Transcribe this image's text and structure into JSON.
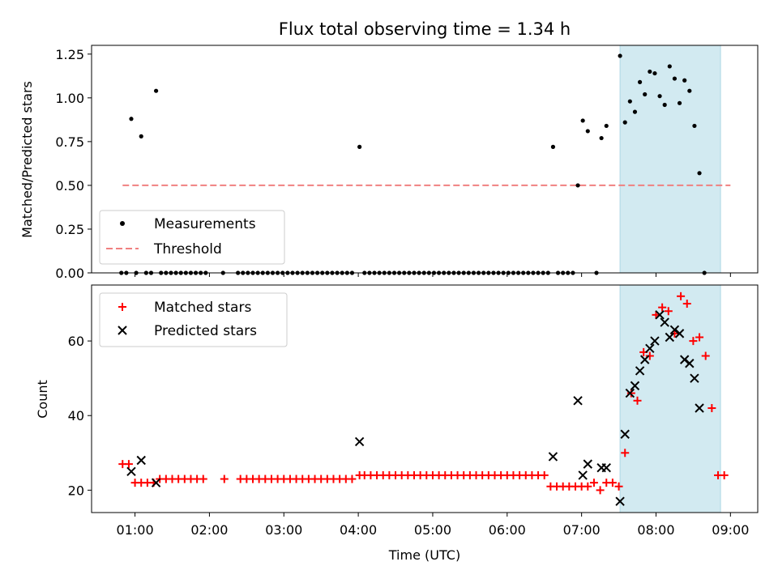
{
  "title": "Flux total observing time = 1.34 h",
  "xlabel": "Time (UTC)",
  "xticks": [
    "01:00",
    "02:00",
    "03:00",
    "04:00",
    "05:00",
    "06:00",
    "07:00",
    "08:00",
    "09:00"
  ],
  "colors": {
    "measurements": "#000000",
    "threshold": "#f08080",
    "matched": "#ff0000",
    "predicted": "#000000",
    "span": "#add8e6"
  },
  "chart_data": [
    {
      "type": "scatter",
      "ylabel": "Matched/Predicted stars",
      "xlim": [
        "00:25",
        "09:22"
      ],
      "ylim": [
        0,
        1.3
      ],
      "yticks": [
        "0.00",
        "0.25",
        "0.50",
        "0.75",
        "1.00",
        "1.25"
      ],
      "legend": {
        "placement": "lower-left",
        "entries": [
          "Measurements",
          "Threshold"
        ]
      },
      "shaded_span": [
        "07:31",
        "08:52"
      ],
      "threshold": {
        "label": "Threshold",
        "value": 0.5,
        "x": [
          "00:50",
          "09:00"
        ]
      },
      "series": [
        {
          "name": "Measurements",
          "marker": "dot",
          "points": [
            [
              "00:49",
              0
            ],
            [
              "00:53",
              0
            ],
            [
              "00:57",
              0.88
            ],
            [
              "01:01",
              0
            ],
            [
              "01:05",
              0.78
            ],
            [
              "01:09",
              0
            ],
            [
              "01:13",
              0
            ],
            [
              "01:17",
              1.04
            ],
            [
              "01:21",
              0
            ],
            [
              "01:25",
              0
            ],
            [
              "01:29",
              0
            ],
            [
              "01:33",
              0
            ],
            [
              "01:37",
              0
            ],
            [
              "01:41",
              0
            ],
            [
              "01:45",
              0
            ],
            [
              "01:49",
              0
            ],
            [
              "01:53",
              0
            ],
            [
              "01:57",
              0
            ],
            [
              "02:11",
              0
            ],
            [
              "02:23",
              0
            ],
            [
              "02:27",
              0
            ],
            [
              "02:31",
              0
            ],
            [
              "02:35",
              0
            ],
            [
              "02:39",
              0
            ],
            [
              "02:43",
              0
            ],
            [
              "02:47",
              0
            ],
            [
              "02:51",
              0
            ],
            [
              "02:55",
              0
            ],
            [
              "02:59",
              0
            ],
            [
              "03:03",
              0
            ],
            [
              "03:07",
              0
            ],
            [
              "03:11",
              0
            ],
            [
              "03:15",
              0
            ],
            [
              "03:19",
              0
            ],
            [
              "03:23",
              0
            ],
            [
              "03:27",
              0
            ],
            [
              "03:31",
              0
            ],
            [
              "03:35",
              0
            ],
            [
              "03:39",
              0
            ],
            [
              "03:43",
              0
            ],
            [
              "03:47",
              0
            ],
            [
              "03:51",
              0
            ],
            [
              "03:55",
              0
            ],
            [
              "04:01",
              0.72
            ],
            [
              "04:05",
              0
            ],
            [
              "04:09",
              0
            ],
            [
              "04:13",
              0
            ],
            [
              "04:17",
              0
            ],
            [
              "04:21",
              0
            ],
            [
              "04:25",
              0
            ],
            [
              "04:29",
              0
            ],
            [
              "04:33",
              0
            ],
            [
              "04:37",
              0
            ],
            [
              "04:41",
              0
            ],
            [
              "04:45",
              0
            ],
            [
              "04:49",
              0
            ],
            [
              "04:53",
              0
            ],
            [
              "04:57",
              0
            ],
            [
              "05:01",
              0
            ],
            [
              "05:05",
              0
            ],
            [
              "05:09",
              0
            ],
            [
              "05:13",
              0
            ],
            [
              "05:17",
              0
            ],
            [
              "05:21",
              0
            ],
            [
              "05:25",
              0
            ],
            [
              "05:29",
              0
            ],
            [
              "05:33",
              0
            ],
            [
              "05:37",
              0
            ],
            [
              "05:41",
              0
            ],
            [
              "05:45",
              0
            ],
            [
              "05:49",
              0
            ],
            [
              "05:53",
              0
            ],
            [
              "05:57",
              0
            ],
            [
              "06:01",
              0
            ],
            [
              "06:05",
              0
            ],
            [
              "06:09",
              0
            ],
            [
              "06:13",
              0
            ],
            [
              "06:17",
              0
            ],
            [
              "06:21",
              0
            ],
            [
              "06:25",
              0
            ],
            [
              "06:29",
              0
            ],
            [
              "06:33",
              0
            ],
            [
              "06:37",
              0.72
            ],
            [
              "06:41",
              0
            ],
            [
              "06:45",
              0
            ],
            [
              "06:49",
              0
            ],
            [
              "06:53",
              0
            ],
            [
              "06:57",
              0.5
            ],
            [
              "07:01",
              0.87
            ],
            [
              "07:05",
              0.81
            ],
            [
              "07:12",
              0
            ],
            [
              "07:16",
              0.77
            ],
            [
              "07:20",
              0.84
            ],
            [
              "07:31",
              1.24
            ],
            [
              "07:35",
              0.86
            ],
            [
              "07:39",
              0.98
            ],
            [
              "07:43",
              0.92
            ],
            [
              "07:47",
              1.09
            ],
            [
              "07:51",
              1.02
            ],
            [
              "07:55",
              1.15
            ],
            [
              "07:59",
              1.14
            ],
            [
              "08:03",
              1.01
            ],
            [
              "08:07",
              0.96
            ],
            [
              "08:11",
              1.18
            ],
            [
              "08:15",
              1.11
            ],
            [
              "08:19",
              0.97
            ],
            [
              "08:23",
              1.1
            ],
            [
              "08:27",
              1.04
            ],
            [
              "08:31",
              0.84
            ],
            [
              "08:35",
              0.57
            ],
            [
              "08:39",
              0
            ]
          ]
        }
      ]
    },
    {
      "type": "scatter",
      "ylabel": "Count",
      "xlim": [
        "00:25",
        "09:22"
      ],
      "ylim": [
        14,
        75
      ],
      "yticks": [
        "20",
        "40",
        "60"
      ],
      "legend": {
        "placement": "upper-left",
        "entries": [
          "Matched stars",
          "Predicted stars"
        ]
      },
      "shaded_span": [
        "07:31",
        "08:52"
      ],
      "series": [
        {
          "name": "Matched stars",
          "marker": "plus",
          "points": [
            [
              "00:50",
              27
            ],
            [
              "00:55",
              27
            ],
            [
              "01:00",
              22
            ],
            [
              "01:05",
              22
            ],
            [
              "01:10",
              22
            ],
            [
              "01:15",
              22
            ],
            [
              "01:20",
              23
            ],
            [
              "01:25",
              23
            ],
            [
              "01:30",
              23
            ],
            [
              "01:35",
              23
            ],
            [
              "01:40",
              23
            ],
            [
              "01:45",
              23
            ],
            [
              "01:50",
              23
            ],
            [
              "01:55",
              23
            ],
            [
              "02:12",
              23
            ],
            [
              "02:25",
              23
            ],
            [
              "02:30",
              23
            ],
            [
              "02:35",
              23
            ],
            [
              "02:40",
              23
            ],
            [
              "02:45",
              23
            ],
            [
              "02:50",
              23
            ],
            [
              "02:55",
              23
            ],
            [
              "03:00",
              23
            ],
            [
              "03:05",
              23
            ],
            [
              "03:10",
              23
            ],
            [
              "03:15",
              23
            ],
            [
              "03:20",
              23
            ],
            [
              "03:25",
              23
            ],
            [
              "03:30",
              23
            ],
            [
              "03:35",
              23
            ],
            [
              "03:40",
              23
            ],
            [
              "03:45",
              23
            ],
            [
              "03:50",
              23
            ],
            [
              "03:55",
              23
            ],
            [
              "04:01",
              24
            ],
            [
              "04:05",
              24
            ],
            [
              "04:10",
              24
            ],
            [
              "04:15",
              24
            ],
            [
              "04:20",
              24
            ],
            [
              "04:25",
              24
            ],
            [
              "04:30",
              24
            ],
            [
              "04:35",
              24
            ],
            [
              "04:40",
              24
            ],
            [
              "04:45",
              24
            ],
            [
              "04:50",
              24
            ],
            [
              "04:55",
              24
            ],
            [
              "05:00",
              24
            ],
            [
              "05:05",
              24
            ],
            [
              "05:10",
              24
            ],
            [
              "05:15",
              24
            ],
            [
              "05:20",
              24
            ],
            [
              "05:25",
              24
            ],
            [
              "05:30",
              24
            ],
            [
              "05:35",
              24
            ],
            [
              "05:40",
              24
            ],
            [
              "05:45",
              24
            ],
            [
              "05:50",
              24
            ],
            [
              "05:55",
              24
            ],
            [
              "06:00",
              24
            ],
            [
              "06:05",
              24
            ],
            [
              "06:10",
              24
            ],
            [
              "06:15",
              24
            ],
            [
              "06:20",
              24
            ],
            [
              "06:25",
              24
            ],
            [
              "06:30",
              24
            ],
            [
              "06:35",
              21
            ],
            [
              "06:40",
              21
            ],
            [
              "06:45",
              21
            ],
            [
              "06:50",
              21
            ],
            [
              "06:55",
              21
            ],
            [
              "07:00",
              21
            ],
            [
              "07:05",
              21
            ],
            [
              "07:10",
              22
            ],
            [
              "07:15",
              20
            ],
            [
              "07:20",
              22
            ],
            [
              "07:25",
              22
            ],
            [
              "07:30",
              21
            ],
            [
              "07:35",
              30
            ],
            [
              "07:40",
              46
            ],
            [
              "07:45",
              44
            ],
            [
              "07:50",
              57
            ],
            [
              "07:55",
              56
            ],
            [
              "08:00",
              67
            ],
            [
              "08:05",
              69
            ],
            [
              "08:10",
              68
            ],
            [
              "08:15",
              62
            ],
            [
              "08:20",
              72
            ],
            [
              "08:25",
              70
            ],
            [
              "08:30",
              60
            ],
            [
              "08:35",
              61
            ],
            [
              "08:40",
              56
            ],
            [
              "08:45",
              42
            ],
            [
              "08:50",
              24
            ],
            [
              "08:55",
              24
            ]
          ]
        },
        {
          "name": "Predicted stars",
          "marker": "x",
          "points": [
            [
              "00:57",
              25
            ],
            [
              "01:05",
              28
            ],
            [
              "01:17",
              22
            ],
            [
              "04:01",
              33
            ],
            [
              "06:37",
              29
            ],
            [
              "06:57",
              44
            ],
            [
              "07:01",
              24
            ],
            [
              "07:05",
              27
            ],
            [
              "07:16",
              26
            ],
            [
              "07:20",
              26
            ],
            [
              "07:31",
              17
            ],
            [
              "07:35",
              35
            ],
            [
              "07:39",
              46
            ],
            [
              "07:43",
              48
            ],
            [
              "07:47",
              52
            ],
            [
              "07:51",
              55
            ],
            [
              "07:55",
              58
            ],
            [
              "07:59",
              60
            ],
            [
              "08:03",
              67
            ],
            [
              "08:07",
              65
            ],
            [
              "08:11",
              61
            ],
            [
              "08:15",
              63
            ],
            [
              "08:19",
              62
            ],
            [
              "08:23",
              55
            ],
            [
              "08:27",
              54
            ],
            [
              "08:31",
              50
            ],
            [
              "08:35",
              42
            ]
          ]
        }
      ]
    }
  ]
}
